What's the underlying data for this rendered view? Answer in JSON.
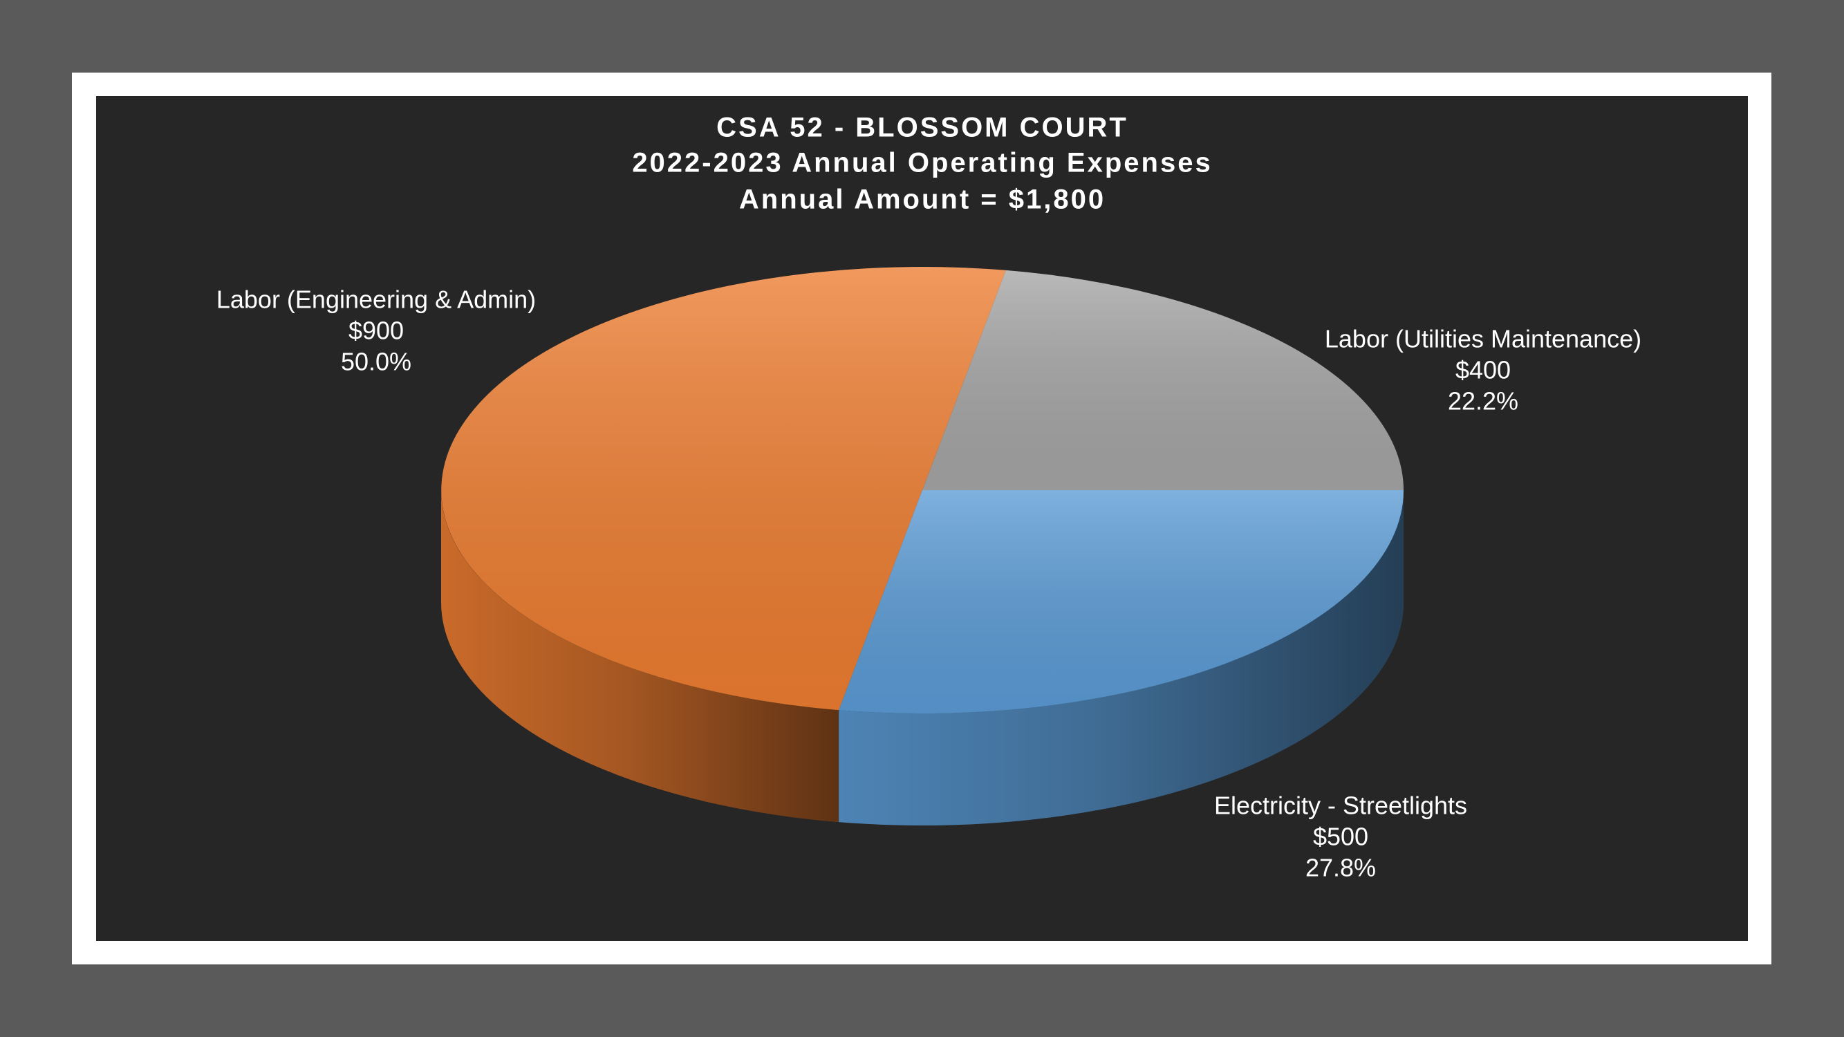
{
  "chart_data": {
    "type": "pie3d",
    "title": [
      "CSA 52 - BLOSSOM COURT",
      "2022-2023 Annual Operating Expenses"
    ],
    "subtitle": "Annual Amount = $1,800",
    "categories": [
      "Labor (Engineering & Admin)",
      "Labor (Utilities Maintenance)",
      "Electricity - Streetlights"
    ],
    "values": [
      900,
      400,
      500
    ],
    "value_labels": [
      "$900",
      "$400",
      "$500"
    ],
    "percent_labels": [
      "50.0%",
      "22.2%",
      "27.8%"
    ],
    "colors": [
      "#ed7d31",
      "#a5a5a5",
      "#5b9bd5"
    ]
  }
}
